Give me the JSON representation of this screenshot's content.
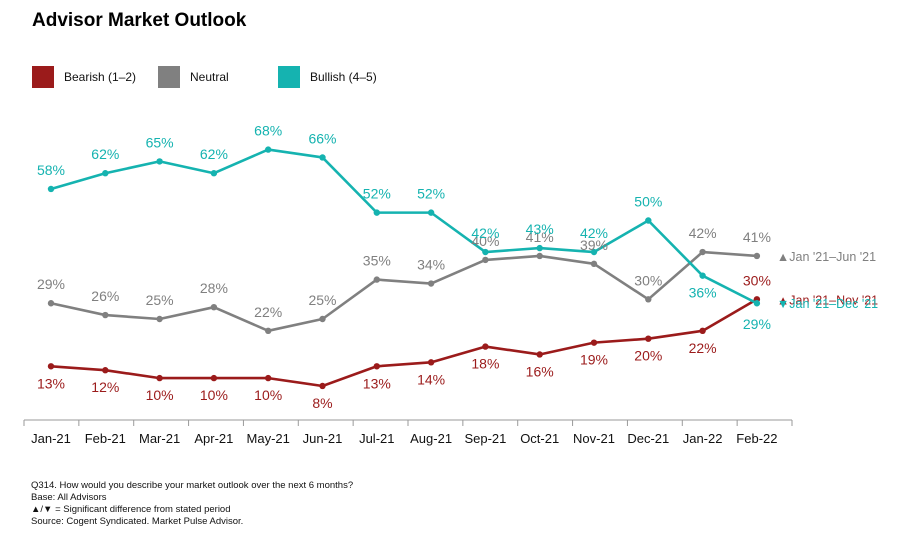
{
  "title": "Advisor Market Outlook",
  "legend": [
    {
      "label": "Bearish (1–2)",
      "color": "#9b1b1b"
    },
    {
      "label": "Neutral",
      "color": "#808080"
    },
    {
      "label": "Bullish (4–5)",
      "color": "#15b3b0"
    }
  ],
  "chart_data": {
    "type": "line",
    "title": "Advisor Market Outlook",
    "categories": [
      "Jan-21",
      "Feb-21",
      "Mar-21",
      "Apr-21",
      "May-21",
      "Jun-21",
      "Jul-21",
      "Aug-21",
      "Sep-21",
      "Oct-21",
      "Nov-21",
      "Dec-21",
      "Jan-22",
      "Feb-22"
    ],
    "series": [
      {
        "name": "Bearish (1–2)",
        "color": "#9b1b1b",
        "values": [
          13,
          12,
          10,
          10,
          10,
          8,
          13,
          14,
          18,
          16,
          19,
          20,
          22,
          30
        ],
        "labels": [
          "13%",
          "12%",
          "10%",
          "10%",
          "10%",
          "8%",
          "13%",
          "14%",
          "18%",
          "16%",
          "19%",
          "20%",
          "22%",
          "30%"
        ]
      },
      {
        "name": "Neutral",
        "color": "#808080",
        "values": [
          29,
          26,
          25,
          28,
          22,
          25,
          35,
          34,
          40,
          41,
          39,
          30,
          42,
          41
        ],
        "labels": [
          "29%",
          "26%",
          "25%",
          "28%",
          "22%",
          "25%",
          "35%",
          "34%",
          "40%",
          "41%",
          "39%",
          "30%",
          "42%",
          "41%"
        ]
      },
      {
        "name": "Bullish (4–5)",
        "color": "#15b3b0",
        "values": [
          58,
          62,
          65,
          62,
          68,
          66,
          52,
          52,
          42,
          43,
          42,
          50,
          36,
          29
        ],
        "labels": [
          "58%",
          "62%",
          "65%",
          "62%",
          "68%",
          "66%",
          "52%",
          "52%",
          "42%",
          "43%",
          "42%",
          "50%",
          "36%",
          "29%"
        ]
      }
    ],
    "annotations": [
      {
        "series": 1,
        "symbol": "▲",
        "text": "Jan '21–Jun '21",
        "color": "#808080"
      },
      {
        "series": 0,
        "symbol": "▲",
        "text": "Jan '21–Nov '21",
        "color": "#9b1b1b"
      },
      {
        "series": 2,
        "symbol": "▼",
        "text": "Jan '21–Dec '21",
        "color": "#15b3b0"
      }
    ],
    "xlabel": "",
    "ylabel": "",
    "ylim": [
      0,
      80
    ],
    "grid": false,
    "legend_position": "top-left"
  },
  "notes": [
    "Q314. How would you describe your market outlook over the next 6 months?",
    "Base: All Advisors",
    "▲/▼ = Significant difference from stated period",
    "Source: Cogent Syndicated. Market Pulse Advisor."
  ]
}
